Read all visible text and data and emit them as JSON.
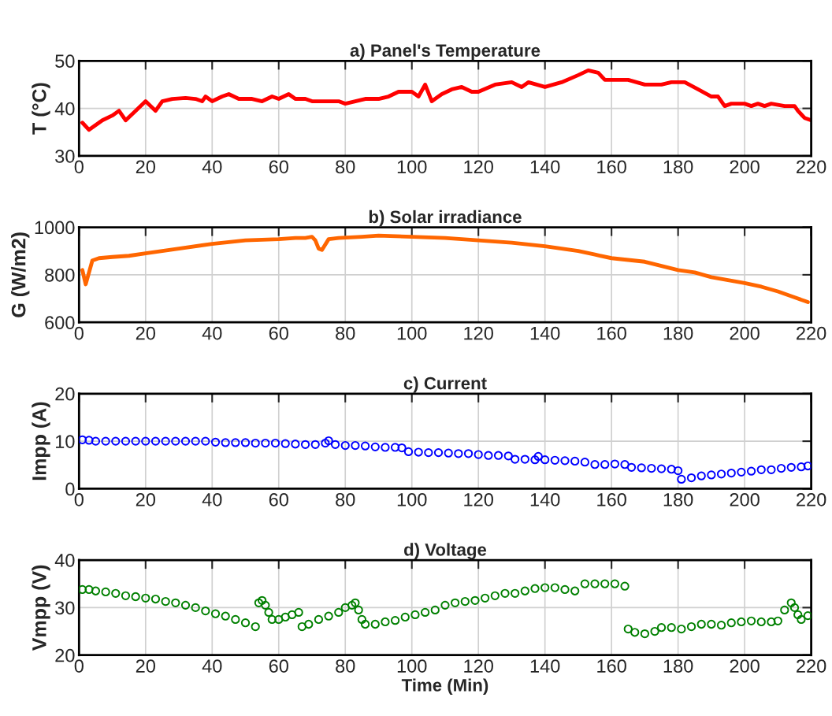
{
  "chart_data": [
    {
      "type": "line",
      "title": "a) Panel's Temperature",
      "ylabel": "T (°C)",
      "color": "#ff0000",
      "xlim": [
        0,
        220
      ],
      "xticks": [
        0,
        20,
        40,
        60,
        80,
        100,
        120,
        140,
        160,
        180,
        200,
        220
      ],
      "ylim": [
        30,
        50
      ],
      "yticks": [
        30,
        40,
        50
      ],
      "grid": true,
      "marker": "none",
      "line_style": "solid",
      "x": [
        1,
        3,
        5,
        7,
        10,
        12,
        14,
        17,
        20,
        23,
        25,
        28,
        32,
        35,
        37,
        38,
        40,
        43,
        45,
        48,
        52,
        55,
        58,
        60,
        63,
        65,
        68,
        70,
        75,
        78,
        80,
        83,
        86,
        90,
        93,
        96,
        100,
        102,
        104,
        106,
        109,
        112,
        115,
        118,
        120,
        125,
        130,
        133,
        135,
        140,
        145,
        150,
        153,
        156,
        158,
        160,
        165,
        170,
        175,
        178,
        182,
        186,
        190,
        192,
        194,
        196,
        200,
        202,
        204,
        206,
        208,
        212,
        215,
        216,
        218,
        220
      ],
      "values": [
        37,
        35.5,
        36.5,
        37.5,
        38.5,
        39.5,
        37.5,
        39.5,
        41.5,
        39.5,
        41.5,
        42,
        42.2,
        42,
        41.5,
        42.5,
        41.5,
        42.5,
        43,
        42,
        42,
        41.5,
        42.5,
        42,
        43,
        42,
        42,
        41.5,
        41.5,
        41.5,
        41,
        41.5,
        42,
        42,
        42.5,
        43.5,
        43.5,
        42.5,
        45,
        41.5,
        43,
        44,
        44.5,
        43.5,
        43.5,
        45,
        45.5,
        44.5,
        45.5,
        44.5,
        45.5,
        47,
        48,
        47.5,
        46,
        46,
        46,
        45,
        45,
        45.5,
        45.5,
        44,
        42.5,
        42.5,
        40.5,
        41,
        41,
        40.5,
        41,
        40.5,
        41,
        40.5,
        40.5,
        39.5,
        38,
        37.5
      ]
    },
    {
      "type": "line",
      "title": "b) Solar irradiance",
      "ylabel": "G (W/m2)",
      "color": "#ff6600",
      "xlim": [
        0,
        220
      ],
      "xticks": [
        0,
        20,
        40,
        60,
        80,
        100,
        120,
        140,
        160,
        180,
        200,
        220
      ],
      "ylim": [
        600,
        1000
      ],
      "yticks": [
        600,
        800,
        1000
      ],
      "grid": true,
      "marker": "none",
      "line_style": "solid",
      "x": [
        1,
        2,
        4,
        6,
        10,
        15,
        20,
        30,
        40,
        50,
        60,
        65,
        68,
        70,
        71,
        72,
        73,
        75,
        78,
        85,
        90,
        100,
        110,
        120,
        130,
        140,
        150,
        155,
        160,
        170,
        180,
        185,
        190,
        200,
        205,
        210,
        215,
        218,
        219
      ],
      "values": [
        820,
        760,
        860,
        870,
        875,
        880,
        890,
        910,
        930,
        945,
        950,
        955,
        955,
        960,
        945,
        910,
        905,
        950,
        955,
        960,
        965,
        960,
        955,
        945,
        935,
        920,
        900,
        885,
        870,
        855,
        820,
        810,
        790,
        765,
        750,
        730,
        705,
        690,
        685
      ]
    },
    {
      "type": "scatter",
      "title": "c) Current",
      "ylabel": "Impp (A)",
      "color": "#0000ff",
      "xlim": [
        0,
        220
      ],
      "xticks": [
        0,
        20,
        40,
        60,
        80,
        100,
        120,
        140,
        160,
        180,
        200,
        220
      ],
      "ylim": [
        0,
        20
      ],
      "yticks": [
        0,
        10,
        20
      ],
      "grid": true,
      "marker": "circle",
      "x": [
        1,
        3,
        5,
        8,
        11,
        14,
        17,
        20,
        23,
        26,
        29,
        32,
        35,
        38,
        41,
        44,
        47,
        50,
        53,
        56,
        59,
        62,
        65,
        68,
        71,
        74,
        75,
        77,
        80,
        83,
        86,
        89,
        92,
        95,
        97,
        99,
        102,
        105,
        108,
        111,
        114,
        117,
        120,
        123,
        126,
        129,
        131,
        134,
        137,
        138,
        140,
        143,
        146,
        149,
        152,
        155,
        158,
        161,
        164,
        166,
        169,
        172,
        175,
        178,
        180,
        181,
        184,
        187,
        190,
        193,
        196,
        199,
        202,
        205,
        208,
        211,
        214,
        217,
        219
      ],
      "values": [
        10.3,
        10.2,
        10,
        10,
        10,
        10,
        10,
        10,
        10,
        10,
        10,
        10,
        10,
        10,
        9.8,
        9.7,
        9.7,
        9.7,
        9.6,
        9.6,
        9.6,
        9.5,
        9.4,
        9.3,
        9.3,
        9.6,
        10.1,
        9.3,
        9.1,
        9.1,
        9,
        8.8,
        8.7,
        8.7,
        8.6,
        7.8,
        7.7,
        7.6,
        7.6,
        7.5,
        7.4,
        7.4,
        7.2,
        7,
        7,
        6.9,
        6.2,
        6.2,
        6.1,
        6.8,
        6.1,
        6,
        5.9,
        5.8,
        5.6,
        5.1,
        5.1,
        5.2,
        5.1,
        4.5,
        4.4,
        4.3,
        4.2,
        4.1,
        3.8,
        2,
        2.3,
        2.7,
        2.9,
        3.1,
        3.3,
        3.5,
        3.7,
        4,
        4,
        4.3,
        4.5,
        4.6,
        4.8
      ]
    },
    {
      "type": "scatter",
      "title": "d) Voltage",
      "xlabel": "Time (Min)",
      "ylabel": "Vmpp (V)",
      "color": "#008000",
      "xlim": [
        0,
        220
      ],
      "xticks": [
        0,
        20,
        40,
        60,
        80,
        100,
        120,
        140,
        160,
        180,
        200,
        220
      ],
      "ylim": [
        20,
        40
      ],
      "yticks": [
        20,
        30,
        40
      ],
      "grid": true,
      "marker": "circle",
      "x": [
        1,
        3,
        5,
        8,
        11,
        14,
        17,
        20,
        23,
        26,
        29,
        32,
        35,
        38,
        41,
        44,
        47,
        50,
        53,
        54,
        55,
        56,
        57,
        58,
        60,
        62,
        64,
        66,
        67,
        69,
        72,
        75,
        78,
        80,
        82,
        83,
        84,
        85,
        86,
        89,
        92,
        95,
        98,
        101,
        104,
        107,
        110,
        113,
        116,
        119,
        122,
        125,
        128,
        131,
        134,
        137,
        140,
        143,
        146,
        149,
        152,
        155,
        158,
        161,
        164,
        165,
        167,
        170,
        173,
        175,
        178,
        181,
        184,
        187,
        190,
        193,
        196,
        199,
        202,
        205,
        208,
        210,
        212,
        214,
        215,
        216,
        217,
        219
      ],
      "values": [
        33.8,
        33.8,
        33.5,
        33.3,
        33,
        32.5,
        32.3,
        32,
        31.8,
        31.3,
        31,
        30.5,
        30,
        29.3,
        28.7,
        28.2,
        27.5,
        26.8,
        26,
        31,
        31.5,
        30.5,
        29,
        27.5,
        27.5,
        28,
        28.5,
        29,
        26,
        26.5,
        27.5,
        28.2,
        29,
        30,
        30.5,
        31,
        29.5,
        27.5,
        26.5,
        26.5,
        27,
        27.3,
        28,
        28.5,
        29,
        29.5,
        30.5,
        31,
        31.3,
        31.5,
        32,
        32.5,
        33,
        33,
        33.5,
        34,
        34.2,
        34.2,
        33.8,
        33.5,
        35,
        35,
        35,
        35,
        34.5,
        25.5,
        24.8,
        24.5,
        25,
        25.8,
        25.8,
        25.5,
        26,
        26.5,
        26.5,
        26.3,
        26.8,
        27,
        27.2,
        27,
        27,
        27.2,
        29.5,
        31,
        30,
        28.5,
        27.5,
        28.3
      ]
    }
  ]
}
